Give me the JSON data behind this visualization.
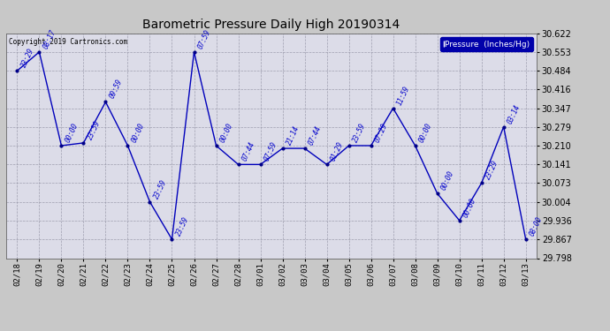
{
  "title": "Barometric Pressure Daily High 20190314",
  "copyright": "Copyright 2019 Cartronics.com",
  "legend_label": "Pressure  (Inches/Hg)",
  "fig_facecolor": "#c8c8c8",
  "plot_facecolor": "#dcdce8",
  "line_color": "#0000bb",
  "marker_color": "#000088",
  "annotation_color": "#0000cc",
  "ylim": [
    29.798,
    30.622
  ],
  "yticks": [
    29.798,
    29.867,
    29.936,
    30.004,
    30.073,
    30.141,
    30.21,
    30.279,
    30.347,
    30.416,
    30.484,
    30.553,
    30.622
  ],
  "x_labels": [
    "02/18",
    "02/19",
    "02/20",
    "02/21",
    "02/22",
    "02/23",
    "02/24",
    "02/25",
    "02/26",
    "02/27",
    "02/28",
    "03/01",
    "03/02",
    "03/03",
    "03/04",
    "03/05",
    "03/06",
    "03/07",
    "03/08",
    "03/09",
    "03/10",
    "03/11",
    "03/12",
    "03/13"
  ],
  "points": [
    {
      "date": "02/18",
      "time": "23:29",
      "value": 30.484
    },
    {
      "date": "02/19",
      "time": "08:17",
      "value": 30.553
    },
    {
      "date": "02/20",
      "time": "00:00",
      "value": 30.21
    },
    {
      "date": "02/21",
      "time": "23:59",
      "value": 30.22
    },
    {
      "date": "02/22",
      "time": "09:59",
      "value": 30.37
    },
    {
      "date": "02/23",
      "time": "00:00",
      "value": 30.21
    },
    {
      "date": "02/24",
      "time": "23:59",
      "value": 30.004
    },
    {
      "date": "02/25",
      "time": "23:59",
      "value": 29.867
    },
    {
      "date": "02/26",
      "time": "07:59",
      "value": 30.553
    },
    {
      "date": "02/27",
      "time": "00:00",
      "value": 30.21
    },
    {
      "date": "02/28",
      "time": "07:44",
      "value": 30.141
    },
    {
      "date": "03/01",
      "time": "07:59",
      "value": 30.141
    },
    {
      "date": "03/02",
      "time": "21:14",
      "value": 30.2
    },
    {
      "date": "03/03",
      "time": "07:44",
      "value": 30.2
    },
    {
      "date": "03/04",
      "time": "01:29",
      "value": 30.141
    },
    {
      "date": "03/05",
      "time": "23:59",
      "value": 30.21
    },
    {
      "date": "03/06",
      "time": "07:29",
      "value": 30.21
    },
    {
      "date": "03/07",
      "time": "11:59",
      "value": 30.347
    },
    {
      "date": "03/08",
      "time": "00:00",
      "value": 30.21
    },
    {
      "date": "03/09",
      "time": "00:00",
      "value": 30.035
    },
    {
      "date": "03/10",
      "time": "00:00",
      "value": 29.936
    },
    {
      "date": "03/11",
      "time": "23:29",
      "value": 30.073
    },
    {
      "date": "03/12",
      "time": "03:14",
      "value": 30.279
    },
    {
      "date": "03/13",
      "time": "08:00",
      "value": 29.867
    }
  ],
  "figsize": [
    6.9,
    3.75
  ],
  "dpi": 100
}
